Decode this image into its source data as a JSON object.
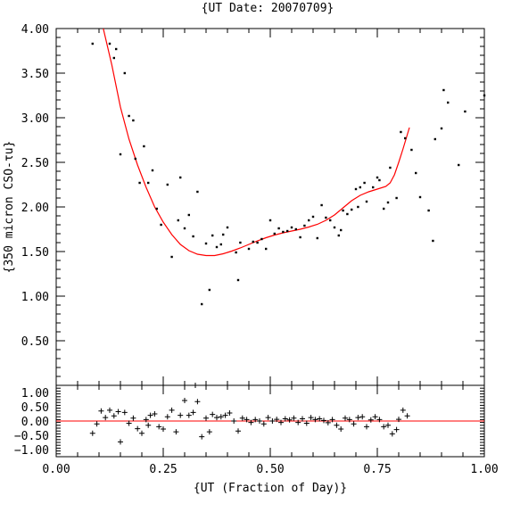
{
  "chart_data": [
    {
      "type": "scatter",
      "title": "{UT Date: 20070709}",
      "xlabel": "",
      "ylabel": "{350 micron CSO-τu}",
      "xlim": [
        0.0,
        1.0
      ],
      "ylim": [
        0.0,
        4.0
      ],
      "yticks": [
        "0.50",
        "1.00",
        "1.50",
        "2.00",
        "2.50",
        "3.00",
        "3.50",
        "4.00"
      ],
      "grid": false,
      "series": [
        {
          "marker": "dot",
          "color": "#000000",
          "points": [
            [
              0.085,
              3.83
            ],
            [
              0.125,
              3.83
            ],
            [
              0.135,
              3.67
            ],
            [
              0.14,
              3.77
            ],
            [
              0.15,
              2.59
            ],
            [
              0.16,
              3.5
            ],
            [
              0.17,
              3.02
            ],
            [
              0.18,
              2.97
            ],
            [
              0.185,
              2.54
            ],
            [
              0.195,
              2.27
            ],
            [
              0.205,
              2.68
            ],
            [
              0.215,
              2.27
            ],
            [
              0.225,
              2.41
            ],
            [
              0.235,
              1.98
            ],
            [
              0.245,
              1.8
            ],
            [
              0.26,
              2.25
            ],
            [
              0.27,
              1.44
            ],
            [
              0.285,
              1.85
            ],
            [
              0.29,
              2.33
            ],
            [
              0.3,
              1.76
            ],
            [
              0.31,
              1.91
            ],
            [
              0.32,
              1.67
            ],
            [
              0.33,
              2.17
            ],
            [
              0.34,
              0.91
            ],
            [
              0.35,
              1.59
            ],
            [
              0.358,
              1.07
            ],
            [
              0.365,
              1.68
            ],
            [
              0.375,
              1.55
            ],
            [
              0.385,
              1.58
            ],
            [
              0.39,
              1.69
            ],
            [
              0.4,
              1.77
            ],
            [
              0.42,
              1.49
            ],
            [
              0.425,
              1.18
            ],
            [
              0.43,
              1.6
            ],
            [
              0.45,
              1.53
            ],
            [
              0.46,
              1.61
            ],
            [
              0.47,
              1.6
            ],
            [
              0.48,
              1.64
            ],
            [
              0.49,
              1.53
            ],
            [
              0.5,
              1.85
            ],
            [
              0.51,
              1.7
            ],
            [
              0.52,
              1.76
            ],
            [
              0.53,
              1.72
            ],
            [
              0.54,
              1.73
            ],
            [
              0.55,
              1.77
            ],
            [
              0.56,
              1.75
            ],
            [
              0.57,
              1.66
            ],
            [
              0.58,
              1.79
            ],
            [
              0.59,
              1.85
            ],
            [
              0.6,
              1.89
            ],
            [
              0.61,
              1.65
            ],
            [
              0.62,
              2.02
            ],
            [
              0.63,
              1.88
            ],
            [
              0.64,
              1.85
            ],
            [
              0.65,
              1.77
            ],
            [
              0.66,
              1.68
            ],
            [
              0.665,
              1.74
            ],
            [
              0.67,
              1.96
            ],
            [
              0.68,
              1.92
            ],
            [
              0.69,
              1.97
            ],
            [
              0.7,
              2.2
            ],
            [
              0.705,
              2.0
            ],
            [
              0.71,
              2.22
            ],
            [
              0.72,
              2.27
            ],
            [
              0.725,
              2.06
            ],
            [
              0.74,
              2.22
            ],
            [
              0.75,
              2.33
            ],
            [
              0.755,
              2.3
            ],
            [
              0.765,
              1.98
            ],
            [
              0.775,
              2.05
            ],
            [
              0.78,
              2.44
            ],
            [
              0.795,
              2.1
            ],
            [
              0.805,
              2.84
            ],
            [
              0.815,
              2.77
            ],
            [
              0.83,
              2.64
            ],
            [
              0.84,
              2.38
            ],
            [
              0.85,
              2.11
            ],
            [
              0.87,
              1.96
            ],
            [
              0.88,
              1.62
            ],
            [
              0.885,
              2.76
            ],
            [
              0.9,
              2.88
            ],
            [
              0.905,
              3.31
            ],
            [
              0.915,
              3.17
            ],
            [
              0.94,
              2.47
            ],
            [
              0.955,
              3.07
            ],
            [
              1.0,
              3.25
            ]
          ]
        },
        {
          "type": "line",
          "color": "#ff0000",
          "points": [
            [
              0.11,
              4.0
            ],
            [
              0.13,
              3.59
            ],
            [
              0.15,
              3.12
            ],
            [
              0.17,
              2.76
            ],
            [
              0.19,
              2.47
            ],
            [
              0.21,
              2.22
            ],
            [
              0.23,
              2.0
            ],
            [
              0.25,
              1.83
            ],
            [
              0.27,
              1.69
            ],
            [
              0.29,
              1.58
            ],
            [
              0.31,
              1.51
            ],
            [
              0.33,
              1.47
            ],
            [
              0.35,
              1.455
            ],
            [
              0.37,
              1.455
            ],
            [
              0.39,
              1.475
            ],
            [
              0.41,
              1.505
            ],
            [
              0.43,
              1.54
            ],
            [
              0.45,
              1.58
            ],
            [
              0.47,
              1.62
            ],
            [
              0.49,
              1.655
            ],
            [
              0.51,
              1.685
            ],
            [
              0.53,
              1.71
            ],
            [
              0.55,
              1.73
            ],
            [
              0.57,
              1.75
            ],
            [
              0.59,
              1.775
            ],
            [
              0.61,
              1.805
            ],
            [
              0.63,
              1.85
            ],
            [
              0.65,
              1.91
            ],
            [
              0.67,
              1.99
            ],
            [
              0.69,
              2.07
            ],
            [
              0.71,
              2.13
            ],
            [
              0.73,
              2.17
            ],
            [
              0.75,
              2.2
            ],
            [
              0.77,
              2.23
            ],
            [
              0.78,
              2.27
            ],
            [
              0.79,
              2.36
            ],
            [
              0.8,
              2.5
            ],
            [
              0.81,
              2.65
            ],
            [
              0.82,
              2.81
            ],
            [
              0.825,
              2.89
            ]
          ]
        }
      ]
    },
    {
      "type": "scatter",
      "xlabel": "{UT (Fraction of Day)}",
      "ylabel": "",
      "xlim": [
        0.0,
        1.0
      ],
      "ylim": [
        -1.25,
        1.25
      ],
      "xticks": [
        "0.00",
        "0.25",
        "0.50",
        "0.75",
        "1.00"
      ],
      "yticks": [
        "1.00",
        "0.50",
        "0.00",
        "−0.50",
        "−1.00"
      ],
      "grid": false,
      "series": [
        {
          "marker": "plus",
          "color": "#000000",
          "points": [
            [
              0.085,
              -0.43
            ],
            [
              0.095,
              -0.1
            ],
            [
              0.105,
              0.35
            ],
            [
              0.115,
              0.12
            ],
            [
              0.125,
              0.38
            ],
            [
              0.135,
              0.18
            ],
            [
              0.145,
              0.33
            ],
            [
              0.15,
              -0.73
            ],
            [
              0.16,
              0.3
            ],
            [
              0.17,
              -0.08
            ],
            [
              0.18,
              0.1
            ],
            [
              0.19,
              -0.27
            ],
            [
              0.2,
              -0.43
            ],
            [
              0.21,
              0.05
            ],
            [
              0.215,
              -0.15
            ],
            [
              0.22,
              0.2
            ],
            [
              0.23,
              0.25
            ],
            [
              0.24,
              -0.2
            ],
            [
              0.25,
              -0.28
            ],
            [
              0.26,
              0.15
            ],
            [
              0.27,
              0.38
            ],
            [
              0.28,
              -0.38
            ],
            [
              0.29,
              0.2
            ],
            [
              0.3,
              0.72
            ],
            [
              0.31,
              0.2
            ],
            [
              0.32,
              0.3
            ],
            [
              0.325,
              1.25
            ],
            [
              0.33,
              0.68
            ],
            [
              0.34,
              -0.55
            ],
            [
              0.35,
              0.1
            ],
            [
              0.358,
              -0.38
            ],
            [
              0.365,
              0.23
            ],
            [
              0.375,
              0.12
            ],
            [
              0.385,
              0.15
            ],
            [
              0.395,
              0.2
            ],
            [
              0.405,
              0.28
            ],
            [
              0.415,
              0.0
            ],
            [
              0.425,
              -0.35
            ],
            [
              0.435,
              0.1
            ],
            [
              0.445,
              0.05
            ],
            [
              0.455,
              -0.05
            ],
            [
              0.465,
              0.05
            ],
            [
              0.475,
              0.0
            ],
            [
              0.485,
              -0.1
            ],
            [
              0.495,
              0.12
            ],
            [
              0.505,
              0.0
            ],
            [
              0.515,
              0.06
            ],
            [
              0.525,
              -0.05
            ],
            [
              0.535,
              0.08
            ],
            [
              0.545,
              0.04
            ],
            [
              0.555,
              0.1
            ],
            [
              0.565,
              -0.05
            ],
            [
              0.575,
              0.08
            ],
            [
              0.585,
              -0.08
            ],
            [
              0.595,
              0.12
            ],
            [
              0.605,
              0.05
            ],
            [
              0.615,
              0.08
            ],
            [
              0.625,
              0.02
            ],
            [
              0.635,
              -0.06
            ],
            [
              0.645,
              0.05
            ],
            [
              0.655,
              -0.15
            ],
            [
              0.665,
              -0.28
            ],
            [
              0.675,
              0.1
            ],
            [
              0.685,
              0.05
            ],
            [
              0.695,
              -0.1
            ],
            [
              0.705,
              0.12
            ],
            [
              0.715,
              0.15
            ],
            [
              0.725,
              -0.2
            ],
            [
              0.735,
              0.04
            ],
            [
              0.745,
              0.15
            ],
            [
              0.755,
              0.05
            ],
            [
              0.765,
              -0.2
            ],
            [
              0.775,
              -0.15
            ],
            [
              0.785,
              -0.45
            ],
            [
              0.795,
              -0.3
            ],
            [
              0.8,
              0.06
            ],
            [
              0.81,
              0.38
            ],
            [
              0.82,
              0.18
            ]
          ]
        },
        {
          "type": "line",
          "color": "#ff0000",
          "points": [
            [
              0.0,
              0.0
            ],
            [
              1.0,
              0.0
            ]
          ]
        }
      ]
    }
  ]
}
